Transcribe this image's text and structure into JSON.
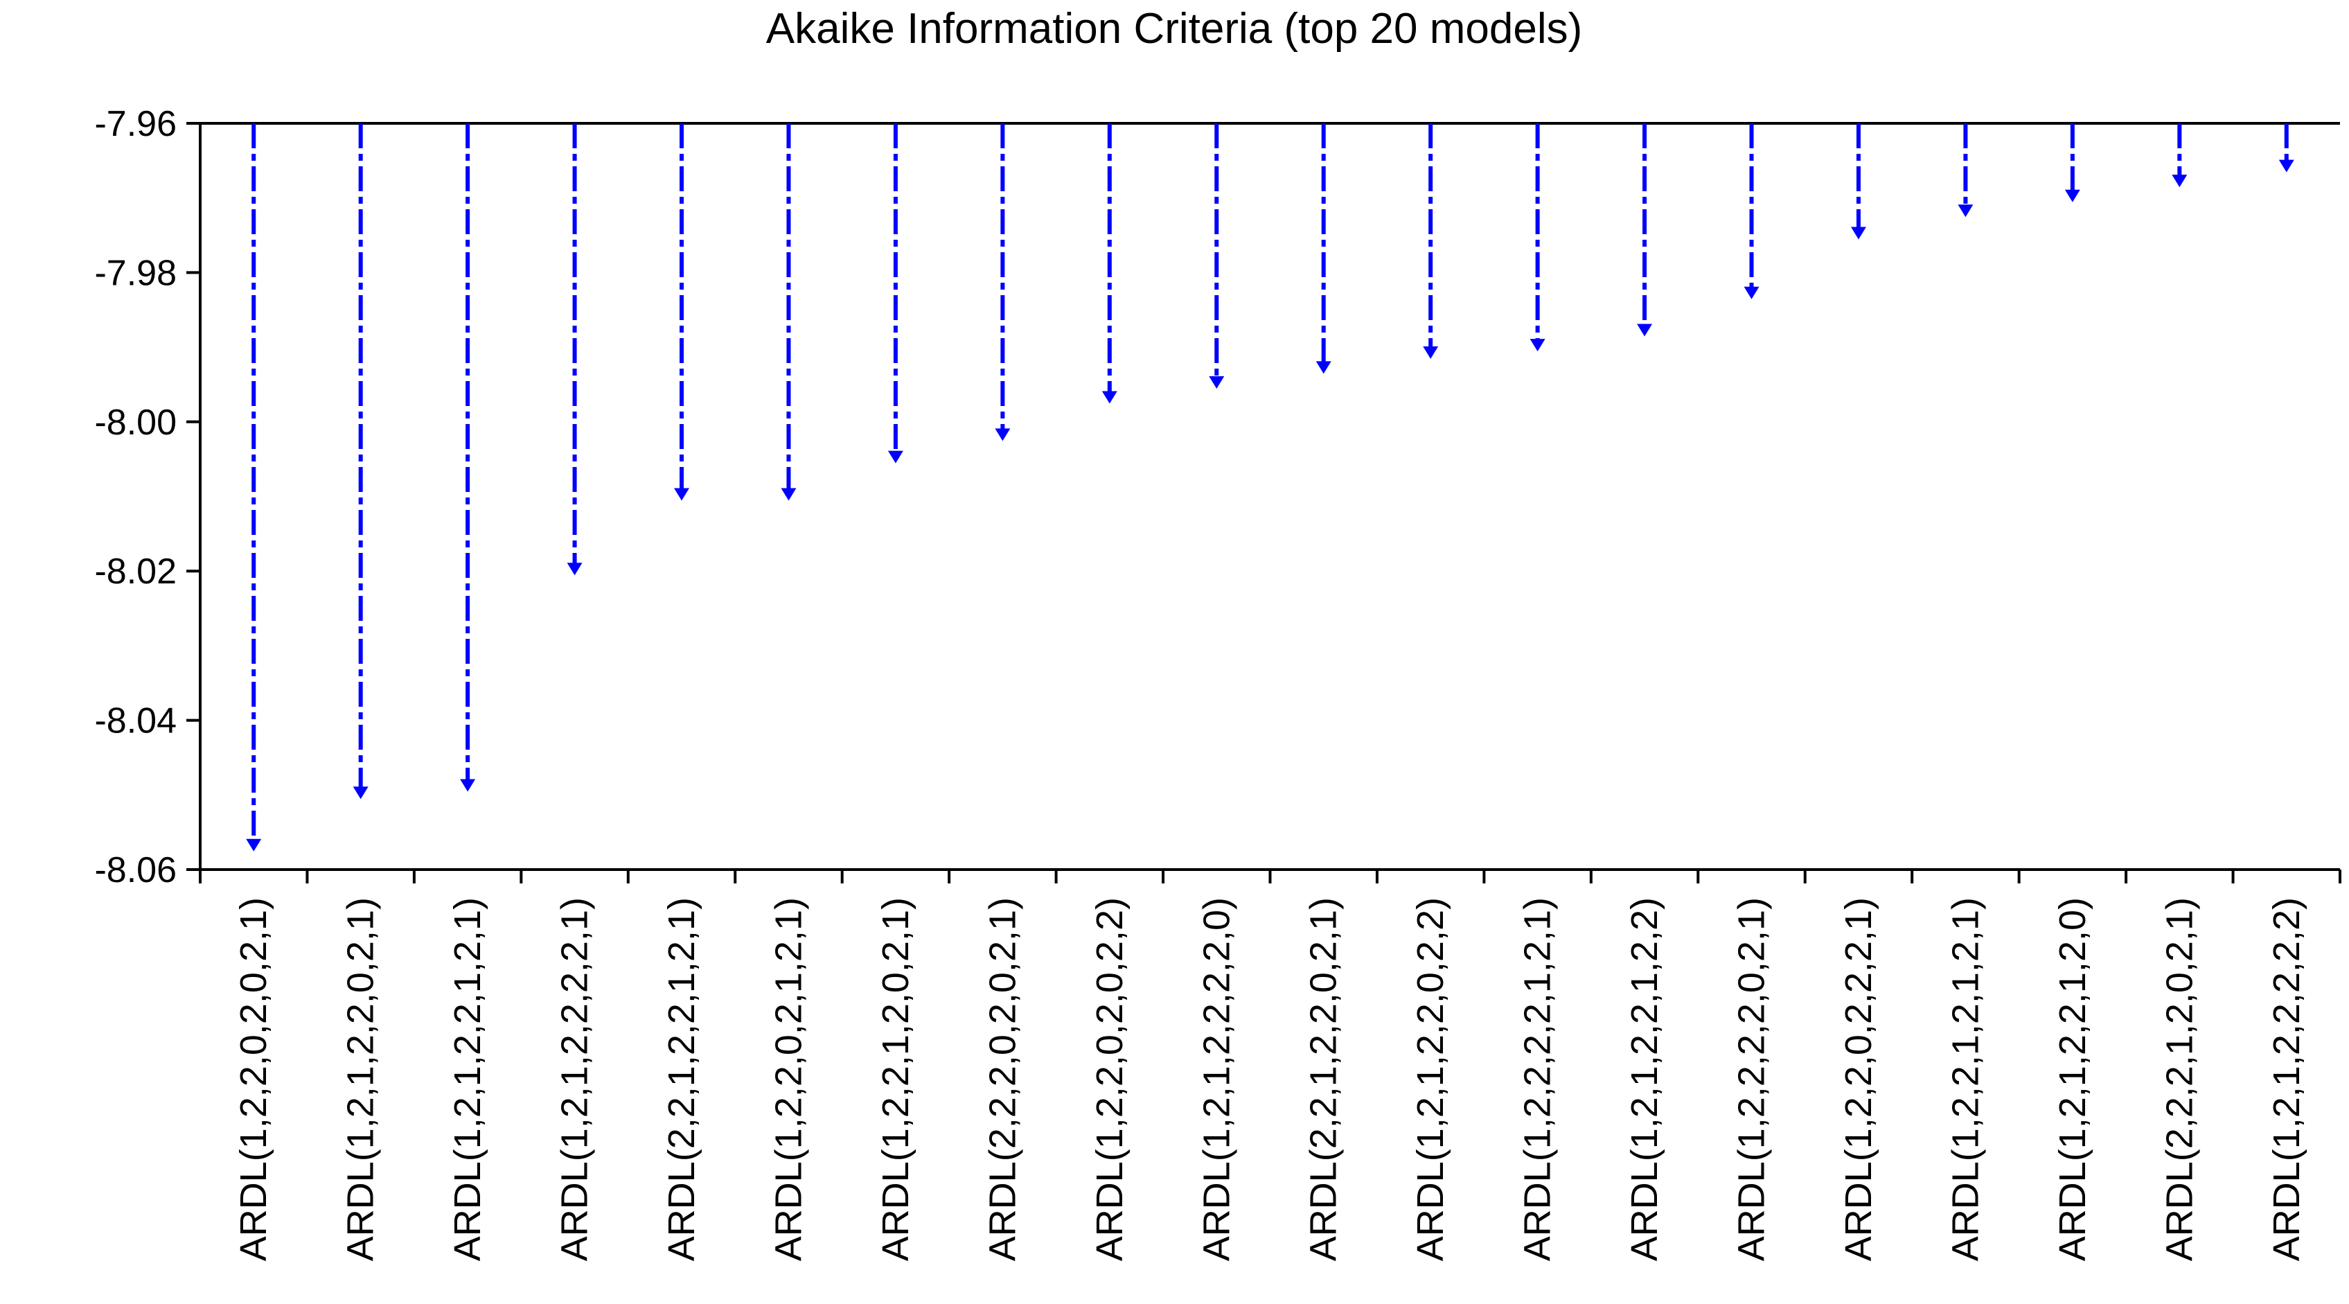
{
  "chart_data": {
    "type": "bar",
    "title": "Akaike Information Criteria (top 20 models)",
    "xlabel": "",
    "ylabel": "",
    "ylim": [
      -8.06,
      -7.96
    ],
    "yticks": [
      -7.96,
      -7.98,
      -8.0,
      -8.02,
      -8.04,
      -8.06
    ],
    "ytick_labels": [
      "-7.96",
      "-7.98",
      "-8.00",
      "-8.02",
      "-8.04",
      "-8.06"
    ],
    "grid": false,
    "legend": "none",
    "color": "#0000ff",
    "categories": [
      "ARDL(1,2,2,0,2,0,2,1)",
      "ARDL(1,2,1,2,2,0,2,1)",
      "ARDL(1,2,1,2,2,1,2,1)",
      "ARDL(1,2,1,2,2,2,2,1)",
      "ARDL(2,2,1,2,2,1,2,1)",
      "ARDL(1,2,2,0,2,1,2,1)",
      "ARDL(1,2,2,1,2,0,2,1)",
      "ARDL(2,2,2,0,2,0,2,1)",
      "ARDL(1,2,2,0,2,0,2,2)",
      "ARDL(1,2,1,2,2,2,2,0)",
      "ARDL(2,2,1,2,2,0,2,1)",
      "ARDL(1,2,1,2,2,0,2,2)",
      "ARDL(1,2,2,2,2,1,2,1)",
      "ARDL(1,2,1,2,2,1,2,2)",
      "ARDL(1,2,2,2,2,0,2,1)",
      "ARDL(1,2,2,0,2,2,2,1)",
      "ARDL(1,2,2,1,2,1,2,1)",
      "ARDL(1,2,1,2,2,1,2,0)",
      "ARDL(2,2,2,1,2,0,2,1)",
      "ARDL(1,2,1,2,2,2,2,2)"
    ],
    "values": [
      -8.057,
      -8.05,
      -8.049,
      -8.02,
      -8.01,
      -8.01,
      -8.005,
      -8.002,
      -7.997,
      -7.995,
      -7.993,
      -7.991,
      -7.99,
      -7.988,
      -7.983,
      -7.975,
      -7.972,
      -7.97,
      -7.968,
      -7.966
    ]
  }
}
